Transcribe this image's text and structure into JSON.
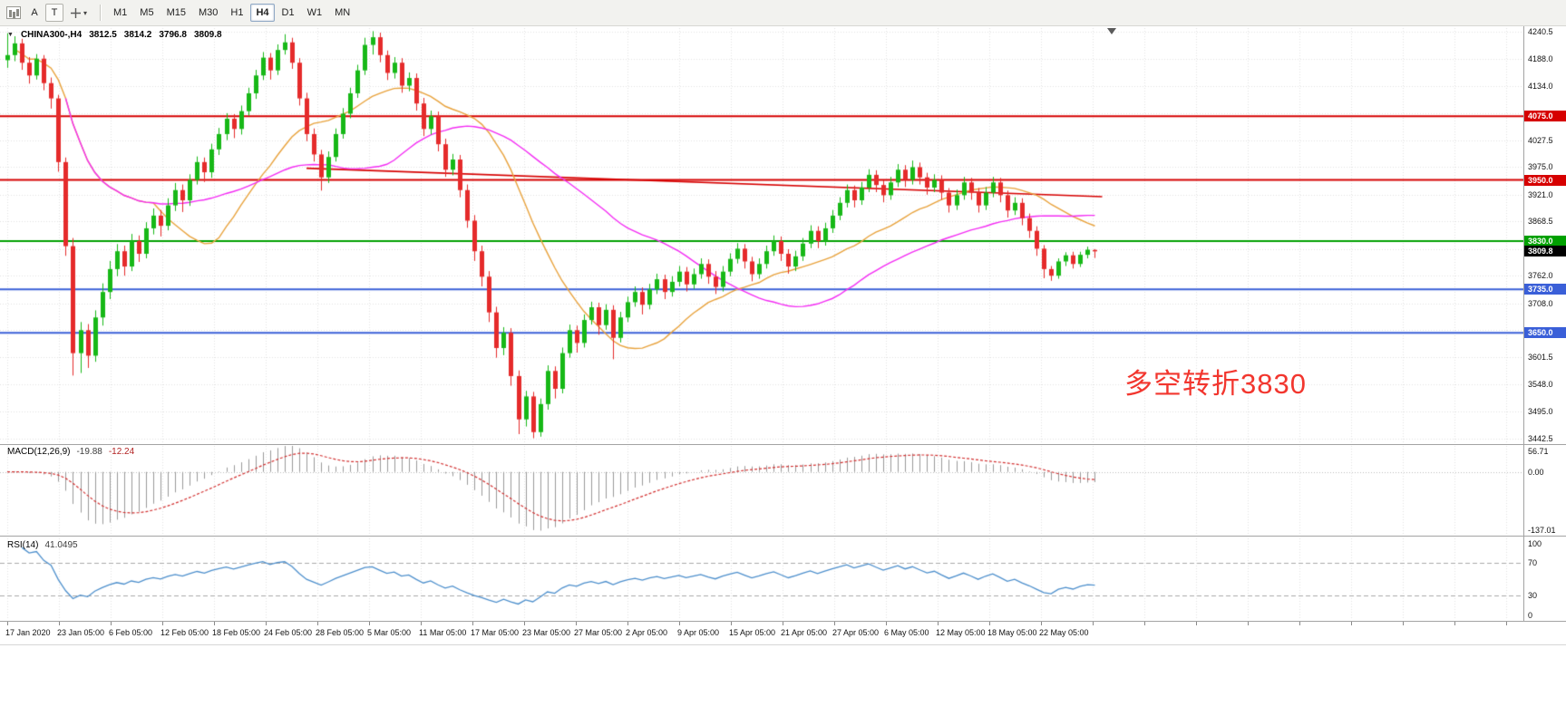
{
  "toolbar": {
    "annotations_button": "A",
    "text_button": "T",
    "timeframes": [
      {
        "label": "M1"
      },
      {
        "label": "M5"
      },
      {
        "label": "M15"
      },
      {
        "label": "M30"
      },
      {
        "label": "H1"
      },
      {
        "label": "H4"
      },
      {
        "label": "D1"
      },
      {
        "label": "W1"
      },
      {
        "label": "MN"
      }
    ],
    "active_timeframe": "H4"
  },
  "header": {
    "title": "CHINA300-,H4",
    "open": "3812.5",
    "high": "3814.2",
    "low": "3796.8",
    "close": "3809.8"
  },
  "chart_data": {
    "type": "candlestick",
    "symbol": "CHINA300-",
    "period": "H4",
    "price_scale": {
      "min": 3435,
      "max": 4248
    },
    "colors": {
      "up": "#17b817",
      "down": "#e52b2b",
      "grid": "#e3e3e3"
    },
    "y_axis": {
      "labels": [
        {
          "v": 4240.5,
          "t": "4240.5"
        },
        {
          "v": 4188.0,
          "t": "4188.0"
        },
        {
          "v": 4134.0,
          "t": "4134.0"
        },
        {
          "v": 4027.5,
          "t": "4027.5"
        },
        {
          "v": 3975.0,
          "t": "3975.0"
        },
        {
          "v": 3921.0,
          "t": "3921.0"
        },
        {
          "v": 3868.5,
          "t": "3868.5"
        },
        {
          "v": 3762.0,
          "t": "3762.0"
        },
        {
          "v": 3708.0,
          "t": "3708.0"
        },
        {
          "v": 3601.5,
          "t": "3601.5"
        },
        {
          "v": 3548.0,
          "t": "3548.0"
        },
        {
          "v": 3495.0,
          "t": "3495.0"
        },
        {
          "v": 3442.5,
          "t": "3442.5"
        }
      ],
      "grid_levels": [
        4240.5,
        4188.0,
        4134.0,
        4081.5,
        4027.5,
        3975.0,
        3921.0,
        3868.5,
        3814.5,
        3762.0,
        3708.0,
        3655.5,
        3601.5,
        3548.0,
        3495.0,
        3442.5
      ]
    },
    "x_axis": {
      "labels": [
        "17 Jan 2020",
        "23 Jan 05:00",
        "6 Feb 05:00",
        "12 Feb 05:00",
        "18 Feb 05:00",
        "24 Feb 05:00",
        "28 Feb 05:00",
        "5 Mar 05:00",
        "11 Mar 05:00",
        "17 Mar 05:00",
        "23 Mar 05:00",
        "27 Mar 05:00",
        "2 Apr 05:00",
        "9 Apr 05:00",
        "15 Apr 05:00",
        "21 Apr 05:00",
        "27 Apr 05:00",
        "6 May 05:00",
        "12 May 05:00",
        "18 May 05:00",
        "22 May 05:00"
      ]
    },
    "levels": [
      {
        "price": 4075.0,
        "label": "4075.0",
        "color": "#d60000"
      },
      {
        "price": 3950.0,
        "label": "3950.0",
        "color": "#d60000"
      },
      {
        "price": 3830.0,
        "label": "3830.0",
        "color": "#00a000"
      },
      {
        "price": 3735.0,
        "label": "3735.0",
        "color": "#3a5fd8"
      },
      {
        "price": 3650.0,
        "label": "3650.0",
        "color": "#3a5fd8"
      }
    ],
    "current_price": {
      "value": 3809.8,
      "label": "3809.8",
      "bg": "#000000"
    },
    "trendline": {
      "from_index": 41,
      "from_price": 3973,
      "to_index": 150,
      "to_price": 3917,
      "color": "#d60000"
    },
    "moving_averages": [
      {
        "name": "MA fast",
        "period": 21,
        "color": "#e8a23c",
        "draw_from": 1
      },
      {
        "name": "MA slow",
        "period": 45,
        "color": "#f32cf3",
        "draw_from": 8
      }
    ],
    "annotation": {
      "text": "多空转折3830",
      "color": "#f2362e"
    },
    "macd": {
      "name": "MACD(12,26,9)",
      "value": "-19.88",
      "signal": "-12.24",
      "fast": 12,
      "slow": 26,
      "signal_period": 9,
      "scale_labels": [
        {
          "v": 56.71,
          "t": "56.71"
        },
        {
          "v": 0,
          "t": "0.00"
        },
        {
          "v": -137.01,
          "t": "-137.01"
        }
      ],
      "scale_max": 56.71,
      "scale_min": -137.01,
      "bar_color": "#9a9a9a",
      "signal_color": "#d23030"
    },
    "rsi": {
      "name": "RSI(14)",
      "value": "41.0495",
      "period": 14,
      "scale_labels": [
        {
          "v": 100,
          "t": "100"
        },
        {
          "v": 70,
          "t": "70"
        },
        {
          "v": 30,
          "t": "30"
        },
        {
          "v": 0,
          "t": "0"
        }
      ],
      "levels": [
        70,
        30
      ],
      "color": "#4d8fcc"
    },
    "candles": [
      [
        4185,
        4238,
        4170,
        4195
      ],
      [
        4195,
        4232,
        4183,
        4218
      ],
      [
        4218,
        4227,
        4166,
        4180
      ],
      [
        4180,
        4191,
        4139,
        4155
      ],
      [
        4155,
        4197,
        4147,
        4188
      ],
      [
        4188,
        4195,
        4126,
        4140
      ],
      [
        4140,
        4151,
        4090,
        4110
      ],
      [
        4110,
        4117,
        3966,
        3985
      ],
      [
        3985,
        3994,
        3801,
        3820
      ],
      [
        3820,
        3836,
        3566,
        3610
      ],
      [
        3610,
        3671,
        3571,
        3655
      ],
      [
        3655,
        3667,
        3581,
        3605
      ],
      [
        3605,
        3694,
        3593,
        3680
      ],
      [
        3680,
        3747,
        3664,
        3730
      ],
      [
        3730,
        3791,
        3716,
        3775
      ],
      [
        3775,
        3824,
        3761,
        3810
      ],
      [
        3810,
        3821,
        3762,
        3780
      ],
      [
        3780,
        3844,
        3771,
        3830
      ],
      [
        3830,
        3841,
        3789,
        3805
      ],
      [
        3805,
        3867,
        3796,
        3855
      ],
      [
        3855,
        3894,
        3843,
        3880
      ],
      [
        3880,
        3891,
        3839,
        3860
      ],
      [
        3860,
        3914,
        3851,
        3900
      ],
      [
        3900,
        3944,
        3889,
        3930
      ],
      [
        3930,
        3941,
        3887,
        3910
      ],
      [
        3910,
        3961,
        3899,
        3950
      ],
      [
        3950,
        3996,
        3941,
        3985
      ],
      [
        3985,
        3994,
        3946,
        3965
      ],
      [
        3965,
        4021,
        3954,
        4010
      ],
      [
        4010,
        4052,
        3999,
        4040
      ],
      [
        4040,
        4081,
        4028,
        4070
      ],
      [
        4070,
        4079,
        4032,
        4050
      ],
      [
        4050,
        4096,
        4039,
        4085
      ],
      [
        4085,
        4131,
        4076,
        4120
      ],
      [
        4120,
        4166,
        4109,
        4155
      ],
      [
        4155,
        4201,
        4146,
        4190
      ],
      [
        4190,
        4199,
        4147,
        4165
      ],
      [
        4165,
        4216,
        4156,
        4205
      ],
      [
        4205,
        4236,
        4196,
        4220
      ],
      [
        4220,
        4229,
        4168,
        4180
      ],
      [
        4180,
        4189,
        4096,
        4110
      ],
      [
        4110,
        4121,
        4026,
        4040
      ],
      [
        4040,
        4051,
        3986,
        4000
      ],
      [
        4000,
        4009,
        3929,
        3955
      ],
      [
        3955,
        4006,
        3944,
        3995
      ],
      [
        3995,
        4051,
        3986,
        4040
      ],
      [
        4040,
        4091,
        4031,
        4080
      ],
      [
        4080,
        4131,
        4071,
        4120
      ],
      [
        4120,
        4176,
        4111,
        4165
      ],
      [
        4165,
        4229,
        4156,
        4215
      ],
      [
        4215,
        4242,
        4196,
        4230
      ],
      [
        4230,
        4239,
        4181,
        4195
      ],
      [
        4195,
        4204,
        4146,
        4160
      ],
      [
        4160,
        4191,
        4149,
        4180
      ],
      [
        4180,
        4189,
        4121,
        4135
      ],
      [
        4135,
        4161,
        4124,
        4150
      ],
      [
        4150,
        4159,
        4086,
        4100
      ],
      [
        4100,
        4111,
        4036,
        4050
      ],
      [
        4050,
        4086,
        4039,
        4075
      ],
      [
        4075,
        4084,
        4006,
        4020
      ],
      [
        4020,
        4031,
        3956,
        3970
      ],
      [
        3970,
        4001,
        3959,
        3990
      ],
      [
        3990,
        3999,
        3916,
        3930
      ],
      [
        3930,
        3941,
        3856,
        3870
      ],
      [
        3870,
        3881,
        3791,
        3810
      ],
      [
        3810,
        3821,
        3741,
        3760
      ],
      [
        3760,
        3771,
        3671,
        3690
      ],
      [
        3690,
        3701,
        3601,
        3620
      ],
      [
        3620,
        3661,
        3606,
        3650
      ],
      [
        3650,
        3659,
        3546,
        3565
      ],
      [
        3565,
        3576,
        3451,
        3480
      ],
      [
        3480,
        3536,
        3466,
        3525
      ],
      [
        3525,
        3534,
        3443,
        3455
      ],
      [
        3455,
        3521,
        3446,
        3510
      ],
      [
        3510,
        3586,
        3499,
        3575
      ],
      [
        3575,
        3584,
        3521,
        3540
      ],
      [
        3540,
        3621,
        3531,
        3610
      ],
      [
        3610,
        3666,
        3601,
        3655
      ],
      [
        3655,
        3664,
        3611,
        3630
      ],
      [
        3630,
        3686,
        3621,
        3675
      ],
      [
        3675,
        3711,
        3666,
        3700
      ],
      [
        3700,
        3709,
        3646,
        3665
      ],
      [
        3665,
        3706,
        3656,
        3695
      ],
      [
        3695,
        3704,
        3598,
        3640
      ],
      [
        3640,
        3691,
        3631,
        3680
      ],
      [
        3680,
        3721,
        3671,
        3710
      ],
      [
        3710,
        3741,
        3701,
        3730
      ],
      [
        3730,
        3739,
        3686,
        3705
      ],
      [
        3705,
        3746,
        3696,
        3735
      ],
      [
        3735,
        3766,
        3726,
        3755
      ],
      [
        3755,
        3764,
        3716,
        3730
      ],
      [
        3730,
        3761,
        3721,
        3750
      ],
      [
        3750,
        3781,
        3741,
        3770
      ],
      [
        3770,
        3779,
        3731,
        3745
      ],
      [
        3745,
        3776,
        3736,
        3765
      ],
      [
        3765,
        3796,
        3756,
        3785
      ],
      [
        3785,
        3794,
        3746,
        3760
      ],
      [
        3760,
        3771,
        3726,
        3740
      ],
      [
        3740,
        3781,
        3731,
        3770
      ],
      [
        3770,
        3806,
        3761,
        3795
      ],
      [
        3795,
        3826,
        3786,
        3815
      ],
      [
        3815,
        3824,
        3776,
        3790
      ],
      [
        3790,
        3799,
        3751,
        3765
      ],
      [
        3765,
        3796,
        3756,
        3785
      ],
      [
        3785,
        3821,
        3776,
        3810
      ],
      [
        3810,
        3841,
        3801,
        3830
      ],
      [
        3830,
        3839,
        3791,
        3805
      ],
      [
        3805,
        3814,
        3766,
        3780
      ],
      [
        3780,
        3811,
        3771,
        3800
      ],
      [
        3800,
        3836,
        3791,
        3825
      ],
      [
        3825,
        3861,
        3816,
        3850
      ],
      [
        3850,
        3859,
        3816,
        3830
      ],
      [
        3830,
        3866,
        3821,
        3855
      ],
      [
        3855,
        3891,
        3846,
        3880
      ],
      [
        3880,
        3916,
        3871,
        3905
      ],
      [
        3905,
        3941,
        3896,
        3930
      ],
      [
        3930,
        3939,
        3896,
        3910
      ],
      [
        3910,
        3946,
        3901,
        3935
      ],
      [
        3935,
        3971,
        3926,
        3960
      ],
      [
        3960,
        3969,
        3926,
        3940
      ],
      [
        3940,
        3949,
        3906,
        3920
      ],
      [
        3920,
        3956,
        3911,
        3945
      ],
      [
        3945,
        3981,
        3936,
        3970
      ],
      [
        3970,
        3979,
        3936,
        3950
      ],
      [
        3950,
        3988,
        3941,
        3975
      ],
      [
        3975,
        3984,
        3941,
        3955
      ],
      [
        3955,
        3964,
        3921,
        3935
      ],
      [
        3935,
        3961,
        3926,
        3950
      ],
      [
        3950,
        3959,
        3911,
        3925
      ],
      [
        3925,
        3934,
        3886,
        3900
      ],
      [
        3900,
        3931,
        3891,
        3920
      ],
      [
        3920,
        3956,
        3911,
        3945
      ],
      [
        3945,
        3954,
        3911,
        3925
      ],
      [
        3925,
        3934,
        3886,
        3900
      ],
      [
        3900,
        3936,
        3891,
        3925
      ],
      [
        3925,
        3956,
        3916,
        3945
      ],
      [
        3945,
        3954,
        3906,
        3920
      ],
      [
        3920,
        3929,
        3876,
        3890
      ],
      [
        3890,
        3916,
        3881,
        3905
      ],
      [
        3905,
        3914,
        3861,
        3875
      ],
      [
        3875,
        3884,
        3836,
        3850
      ],
      [
        3850,
        3859,
        3801,
        3815
      ],
      [
        3815,
        3822,
        3757,
        3775
      ],
      [
        3775,
        3781,
        3752,
        3762
      ],
      [
        3762,
        3796,
        3756,
        3790
      ],
      [
        3790,
        3808,
        3781,
        3802
      ],
      [
        3802,
        3809,
        3776,
        3785
      ],
      [
        3785,
        3809,
        3779,
        3803
      ],
      [
        3803,
        3819,
        3796,
        3813
      ],
      [
        3812.5,
        3814.2,
        3796.8,
        3809.8
      ]
    ]
  }
}
